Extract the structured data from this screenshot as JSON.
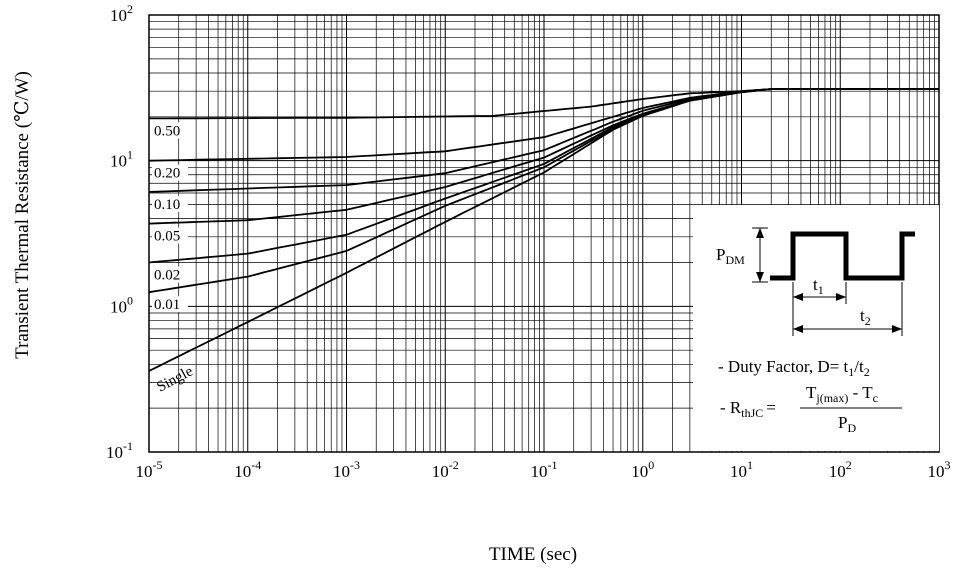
{
  "chart_data": {
    "type": "line",
    "xscale": "log",
    "yscale": "log",
    "xlim": [
      1e-05,
      1000
    ],
    "ylim": [
      0.1,
      100
    ],
    "grid": true,
    "xlabel": "TIME (sec)",
    "ylabel": "Transient Thermal Resistance (℃/W)",
    "x_ticks": [
      {
        "base": "10",
        "exp": "-5"
      },
      {
        "base": "10",
        "exp": "-4"
      },
      {
        "base": "10",
        "exp": "-3"
      },
      {
        "base": "10",
        "exp": "-2"
      },
      {
        "base": "10",
        "exp": "-1"
      },
      {
        "base": "10",
        "exp": "0"
      },
      {
        "base": "10",
        "exp": "1"
      },
      {
        "base": "10",
        "exp": "2"
      },
      {
        "base": "10",
        "exp": "3"
      }
    ],
    "y_ticks": [
      {
        "base": "10",
        "exp": "-1"
      },
      {
        "base": "10",
        "exp": "0"
      },
      {
        "base": "10",
        "exp": "1"
      },
      {
        "base": "10",
        "exp": "2"
      }
    ],
    "series": [
      {
        "name": "0.50",
        "points": [
          [
            1e-05,
            19.5
          ],
          [
            0.001,
            19.7
          ],
          [
            0.03,
            20.3
          ],
          [
            0.3,
            23.5
          ],
          [
            1,
            26.5
          ],
          [
            3,
            29
          ],
          [
            10,
            30
          ],
          [
            20,
            31
          ],
          [
            1000,
            31
          ]
        ]
      },
      {
        "name": "0.20",
        "points": [
          [
            1e-05,
            10
          ],
          [
            0.001,
            10.6
          ],
          [
            0.01,
            11.6
          ],
          [
            0.1,
            14.5
          ],
          [
            0.5,
            20
          ],
          [
            1,
            23
          ],
          [
            3,
            27
          ],
          [
            10,
            30
          ],
          [
            20,
            31
          ],
          [
            1000,
            31
          ]
        ]
      },
      {
        "name": "0.10",
        "points": [
          [
            1e-05,
            6.1
          ],
          [
            0.001,
            6.8
          ],
          [
            0.01,
            8.2
          ],
          [
            0.1,
            11.8
          ],
          [
            0.5,
            18.5
          ],
          [
            1,
            22
          ],
          [
            3,
            26.5
          ],
          [
            10,
            29.8
          ],
          [
            20,
            31
          ],
          [
            1000,
            31
          ]
        ]
      },
      {
        "name": "0.05",
        "points": [
          [
            1e-05,
            3.7
          ],
          [
            0.0001,
            3.9
          ],
          [
            0.001,
            4.6
          ],
          [
            0.01,
            6.6
          ],
          [
            0.1,
            10.5
          ],
          [
            0.5,
            17.5
          ],
          [
            1,
            21
          ],
          [
            3,
            26
          ],
          [
            10,
            29.7
          ],
          [
            20,
            31
          ],
          [
            1000,
            31
          ]
        ]
      },
      {
        "name": "0.02",
        "points": [
          [
            1e-05,
            2.0
          ],
          [
            0.0001,
            2.3
          ],
          [
            0.001,
            3.1
          ],
          [
            0.01,
            5.5
          ],
          [
            0.1,
            9.5
          ],
          [
            0.5,
            17
          ],
          [
            1,
            20.8
          ],
          [
            3,
            26
          ],
          [
            10,
            29.6
          ],
          [
            20,
            31
          ],
          [
            1000,
            31
          ]
        ]
      },
      {
        "name": "0.01",
        "points": [
          [
            1e-05,
            1.25
          ],
          [
            0.0001,
            1.6
          ],
          [
            0.001,
            2.4
          ],
          [
            0.01,
            4.9
          ],
          [
            0.1,
            9
          ],
          [
            0.5,
            16.6
          ],
          [
            1,
            20.5
          ],
          [
            3,
            26
          ],
          [
            10,
            29.5
          ],
          [
            20,
            31
          ],
          [
            1000,
            31
          ]
        ]
      },
      {
        "name": "Single",
        "points": [
          [
            1e-05,
            0.36
          ],
          [
            0.0001,
            0.78
          ],
          [
            0.001,
            1.7
          ],
          [
            0.01,
            3.8
          ],
          [
            0.1,
            8.3
          ],
          [
            0.5,
            16.3
          ],
          [
            1,
            20.3
          ],
          [
            3,
            25.8
          ],
          [
            10,
            29.5
          ],
          [
            20,
            31
          ],
          [
            1000,
            31
          ]
        ]
      }
    ],
    "inset": {
      "pulse_label": "P",
      "pulse_label_sub": "DM",
      "t1_label": "t",
      "t1_sub": "1",
      "t2_label": "t",
      "t2_sub": "2",
      "duty_prefix": "- Duty Factor, D= t",
      "duty_sub1": "1",
      "duty_slash": "/t",
      "duty_sub2": "2",
      "r_prefix": "- R",
      "r_sub": "thJC",
      "r_equals": "=",
      "num_t": "T",
      "num_t_sub": "j(max)",
      "num_minus": " - T",
      "num_tc_sub": "c",
      "den_p": "P",
      "den_p_sub": "D"
    },
    "colors": {
      "line": "#000000",
      "grid": "#000000",
      "background": "#ffffff"
    }
  }
}
